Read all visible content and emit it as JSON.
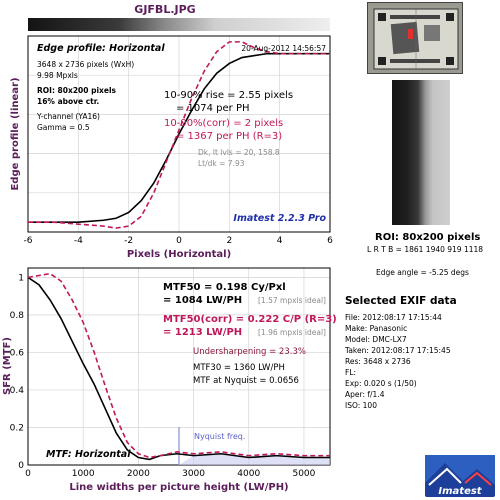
{
  "title": "GJFBL.JPG",
  "colors": {
    "background": "#ffffff",
    "axis_title": "#5b1e5b",
    "black_curve": "#000000",
    "red_curve": "#c0185a",
    "nyquist_line": "#8890e0",
    "brand": "#1f2fa8"
  },
  "chart_data": [
    {
      "type": "line",
      "title": "Edge profile: Horizontal",
      "xlabel": "Pixels (Horizontal)",
      "ylabel": "Edge profile (linear)",
      "xlim": [
        -6,
        6
      ],
      "ylim": [
        0,
        1
      ],
      "x_ticks": [
        "-6",
        "-4",
        "-2",
        "0",
        "2",
        "4",
        "6"
      ],
      "grid": true,
      "series": [
        {
          "color": "#000000",
          "style": "solid",
          "x": [
            -6,
            -5,
            -4,
            -3,
            -2.5,
            -2,
            -1.5,
            -1,
            -0.5,
            0,
            0.5,
            1,
            1.5,
            2,
            2.5,
            3,
            3.5,
            4,
            5,
            6
          ],
          "y": [
            0.05,
            0.05,
            0.05,
            0.06,
            0.07,
            0.1,
            0.16,
            0.25,
            0.37,
            0.5,
            0.62,
            0.73,
            0.81,
            0.86,
            0.89,
            0.9,
            0.91,
            0.91,
            0.91,
            0.91
          ]
        },
        {
          "color": "#c0185a",
          "style": "dashed",
          "x": [
            -6,
            -5,
            -4,
            -3,
            -2.5,
            -2,
            -1.5,
            -1,
            -0.5,
            0,
            0.5,
            1,
            1.5,
            2,
            2.5,
            3,
            3.5,
            4,
            5,
            6
          ],
          "y": [
            0.05,
            0.05,
            0.04,
            0.03,
            0.02,
            0.03,
            0.08,
            0.2,
            0.36,
            0.52,
            0.68,
            0.82,
            0.92,
            0.97,
            0.97,
            0.94,
            0.92,
            0.91,
            0.91,
            0.91
          ]
        }
      ],
      "annotations": {
        "date": "20-Aug-2012 14:56:57",
        "dims": "3648 x 2736 pixels (WxH)",
        "mpxls": "9.98 Mpxls",
        "roi": "ROI: 80x200 pixels",
        "above": "16% above ctr.",
        "channel": "Y-channel  (YA16)",
        "gamma": "Gamma = 0.5",
        "rise": "10-90% rise = 2.55 pixels",
        "rise_ph": "= 1074 per PH",
        "corr": "10-90%(corr) = 2 pixels",
        "corr_ph": "= 1367 per PH  (R=3)",
        "dk": "Dk, lt lvls = 20, 158.8",
        "ltdk": "Lt/dk = 7.93",
        "brand": "Imatest 2.2.3 Pro"
      }
    },
    {
      "type": "line",
      "title": "MTF: Horizontal",
      "xlabel": "Line widths per picture height (LW/PH)",
      "ylabel": "SFR (MTF)",
      "xlim": [
        0,
        5472
      ],
      "ylim": [
        0,
        1.05
      ],
      "x_ticks": [
        "0",
        "1000",
        "2000",
        "3000",
        "4000",
        "5000"
      ],
      "y_ticks": [
        "0",
        "0.2",
        "0.4",
        "0.6",
        "0.8",
        "1"
      ],
      "grid": true,
      "nyquist_x": 2736,
      "nyquist_label": "Nyquist freq.",
      "series": [
        {
          "color": "#000000",
          "style": "solid",
          "x": [
            0,
            200,
            400,
            600,
            800,
            1000,
            1200,
            1400,
            1600,
            1800,
            2000,
            2200,
            2400,
            2700,
            3000,
            3500,
            4000,
            4500,
            5000,
            5472
          ],
          "y": [
            1.0,
            0.96,
            0.88,
            0.78,
            0.66,
            0.54,
            0.43,
            0.3,
            0.17,
            0.08,
            0.04,
            0.03,
            0.05,
            0.06,
            0.05,
            0.06,
            0.04,
            0.05,
            0.04,
            0.04
          ]
        },
        {
          "color": "#c0185a",
          "style": "dashed",
          "x": [
            0,
            200,
            400,
            600,
            800,
            1000,
            1200,
            1400,
            1600,
            1800,
            2000,
            2200,
            2400,
            2700,
            3000,
            3500,
            4000,
            4500,
            5000,
            5472
          ],
          "y": [
            1.0,
            1.01,
            1.02,
            0.98,
            0.88,
            0.76,
            0.6,
            0.42,
            0.25,
            0.12,
            0.06,
            0.04,
            0.05,
            0.07,
            0.06,
            0.07,
            0.05,
            0.06,
            0.05,
            0.05
          ]
        }
      ],
      "annotations": {
        "mtf50": "MTF50 = 0.198 Cy/Pxl",
        "mtf50_lw": "= 1084 LW/PH",
        "mtf50_ideal": "[1.57 mpxls ideal]",
        "mtf50c": "MTF50(corr) = 0.222 C/P  (R=3)",
        "mtf50c_lw": "= 1213 LW/PH",
        "mtf50c_ideal": "[1.96 mpxls ideal]",
        "undersharp": "Undersharpening = 23.3%",
        "mtf30": "MTF30 = 1360 LW/PH",
        "nyq_mtf": "MTF at Nyquist = 0.0656"
      }
    }
  ],
  "roi": {
    "title": "ROI: 80x200 pixels",
    "coords": "L R  T B = 1861 1940  919 1118"
  },
  "edge_angle": "Edge angle = -5.25 degs",
  "exif": {
    "title": "Selected EXIF data",
    "rows": [
      "File:  2012:08:17 17:15:44",
      "Make:  Panasonic",
      "Model:  DMC-LX7",
      "Taken:  2012:08:17 17:15:45",
      "Res:   3648 x 2736",
      "FL:",
      "Exp:   0.020 s  (1/50)",
      "Aper:   f/1.4",
      "ISO:    100"
    ]
  },
  "logo_text": "Imatest"
}
